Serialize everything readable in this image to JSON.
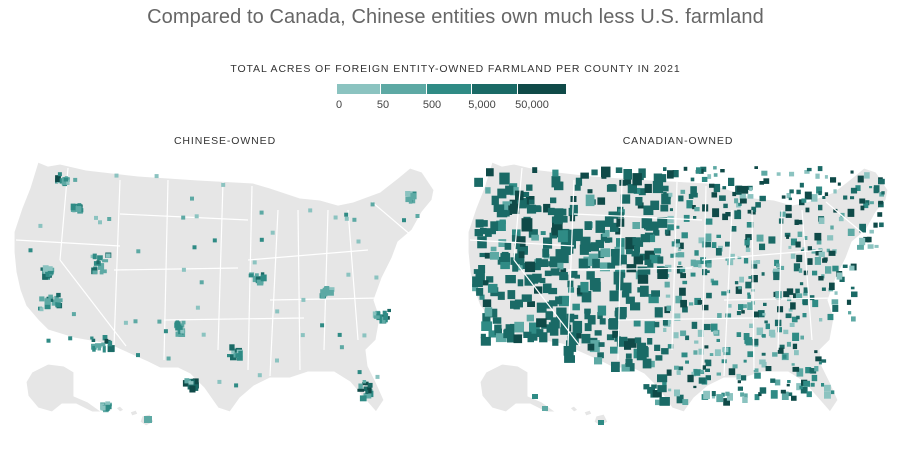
{
  "title": "Compared to Canada, Chinese entities own much less U.S. farmland",
  "legend": {
    "title": "TOTAL ACRES OF FOREIGN ENTITY-OWNED FARMLAND PER COUNTY IN 2021",
    "swatches": [
      {
        "color": "#8bc3c0"
      },
      {
        "color": "#5da9a4"
      },
      {
        "color": "#2f8b85"
      },
      {
        "color": "#1a6a66"
      },
      {
        "color": "#0f4a48"
      }
    ],
    "labels": [
      "0",
      "50",
      "500",
      "5,000",
      "50,000"
    ]
  },
  "maps": [
    {
      "title": "CHINESE-OWNED",
      "density": "low"
    },
    {
      "title": "CANADIAN-OWNED",
      "density": "high"
    }
  ]
}
